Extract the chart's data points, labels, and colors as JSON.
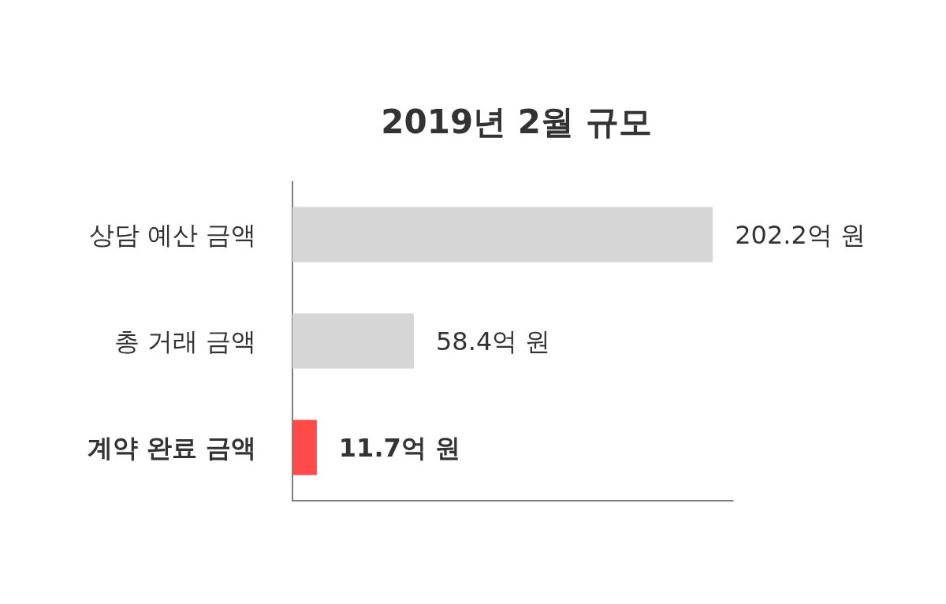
{
  "chart_data": {
    "type": "bar",
    "orientation": "horizontal",
    "title": "2019년 2월 규모",
    "categories": [
      "상담 예산 금액",
      "총 거래 금액",
      "계약 완료 금액"
    ],
    "values": [
      202.2,
      58.4,
      11.7
    ],
    "colors": [
      "#d6d6d6",
      "#d6d6d6",
      "#ff4a4a"
    ],
    "value_labels": [
      "202.2억 원",
      "58.4억 원",
      "11.7억 원"
    ],
    "xlim": [
      0,
      212
    ]
  }
}
